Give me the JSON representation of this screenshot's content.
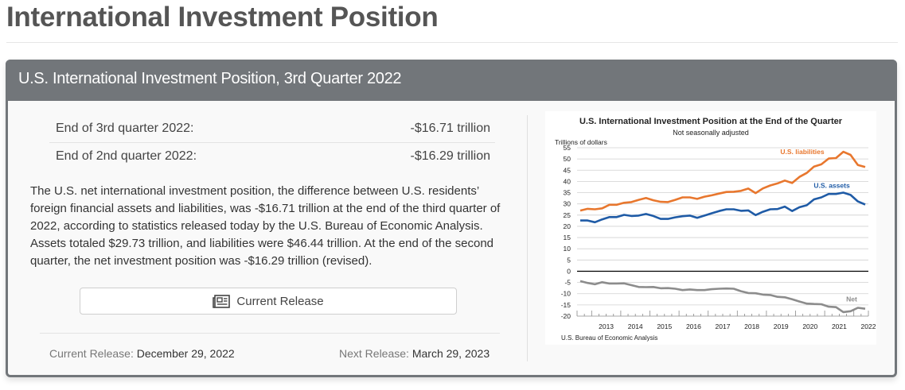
{
  "page": {
    "title": "International Investment Position"
  },
  "panel": {
    "header": "U.S. International Investment Position, 3rd Quarter 2022",
    "stats": [
      {
        "label": "End of 3rd quarter 2022:",
        "value": "-$16.71 trillion"
      },
      {
        "label": "End of 2nd quarter 2022:",
        "value": "-$16.29 trillion"
      }
    ],
    "summary": "The U.S. net international investment position, the difference between U.S. residents’ foreign financial assets and liabilities, was -$16.71 trillion at the end of the third quarter of 2022, according to statistics released today by the U.S. Bureau of Economic Analysis. Assets totaled $29.73 trillion, and liabilities were $46.44 trillion. At the end of the second quarter, the net investment position was -$16.29 trillion (revised).",
    "button": {
      "label": "Current Release",
      "icon": "newspaper-icon"
    },
    "footer": {
      "current_label": "Current Release:",
      "current_value": "December 29, 2022",
      "next_label": "Next Release:",
      "next_value": "March 29, 2023"
    }
  },
  "chart_data": {
    "type": "line",
    "title": "U.S. International Investment Position at the End of the Quarter",
    "subtitle": "Not seasonally adjusted",
    "ylabel": "Trillions of dollars",
    "xlabel": "",
    "source": "U.S. Bureau of Economic Analysis",
    "ylim": [
      -20,
      55
    ],
    "yticks": [
      55,
      50,
      45,
      40,
      35,
      30,
      25,
      20,
      15,
      10,
      5,
      0,
      -5,
      -10,
      -15,
      -20
    ],
    "x_tick_labels": [
      "2013",
      "2014",
      "2015",
      "2016",
      "2017",
      "2018",
      "2019",
      "2020",
      "2021",
      "2022"
    ],
    "x_start": "2012 Q3",
    "x_end": "2022 Q3",
    "grid": true,
    "legend": "inline labels",
    "series": [
      {
        "name": "U.S. liabilities",
        "color": "#e8772e",
        "values": [
          27.0,
          27.8,
          27.6,
          28.0,
          29.6,
          29.6,
          30.5,
          30.8,
          31.8,
          32.6,
          31.6,
          30.9,
          30.8,
          31.8,
          32.9,
          32.9,
          32.2,
          33.2,
          33.8,
          34.6,
          35.3,
          35.4,
          35.8,
          36.8,
          34.8,
          36.9,
          38.2,
          39.1,
          40.4,
          39.3,
          42.0,
          43.8,
          46.6,
          47.6,
          50.2,
          50.4,
          53.2,
          51.8,
          47.3,
          46.4
        ]
      },
      {
        "name": "U.S. assets",
        "color": "#1f5ba6",
        "values": [
          22.6,
          22.6,
          21.8,
          23.1,
          24.1,
          24.1,
          25.1,
          24.6,
          24.8,
          25.5,
          24.6,
          23.3,
          23.3,
          24.0,
          24.5,
          24.8,
          23.8,
          24.8,
          25.8,
          26.8,
          27.6,
          27.6,
          26.9,
          27.1,
          25.0,
          26.5,
          27.6,
          27.7,
          28.8,
          26.8,
          28.5,
          29.4,
          32.0,
          32.9,
          34.4,
          34.4,
          35.0,
          34.0,
          31.1,
          29.7
        ]
      },
      {
        "name": "Net",
        "color": "#8c8c8c",
        "values": [
          -4.4,
          -5.2,
          -5.8,
          -4.9,
          -5.5,
          -5.5,
          -5.4,
          -6.2,
          -7.0,
          -7.1,
          -7.0,
          -7.6,
          -7.5,
          -7.8,
          -8.4,
          -8.1,
          -8.4,
          -8.4,
          -8.0,
          -7.8,
          -7.7,
          -7.8,
          -8.9,
          -9.7,
          -9.8,
          -10.4,
          -10.6,
          -11.4,
          -11.6,
          -12.5,
          -13.5,
          -14.4,
          -14.6,
          -14.7,
          -15.8,
          -16.0,
          -18.2,
          -17.8,
          -16.3,
          -16.7
        ]
      }
    ]
  }
}
